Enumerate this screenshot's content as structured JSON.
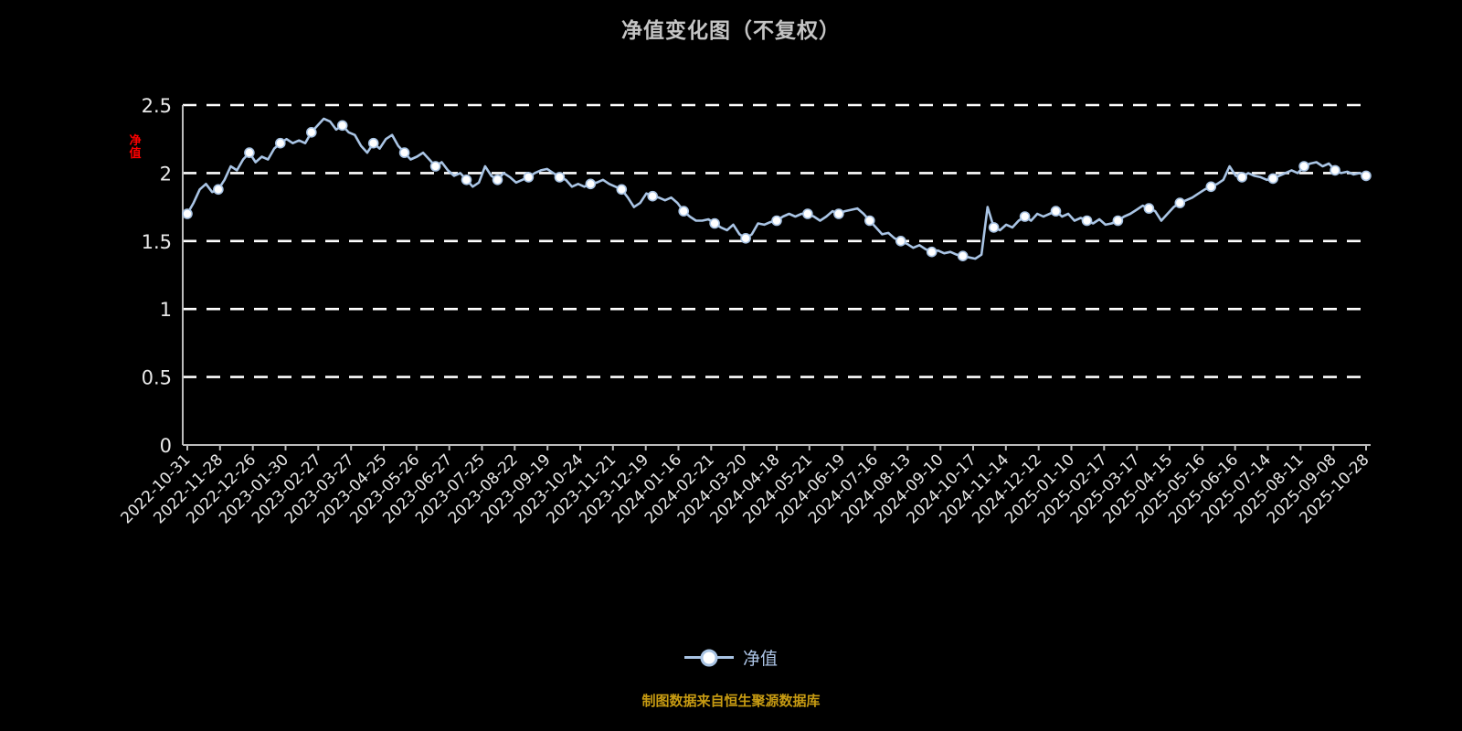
{
  "chart_data": {
    "type": "line",
    "title": "净值变化图（不复权）",
    "y_axis_label": "净值",
    "ylim": [
      0,
      2.5
    ],
    "y_ticks": [
      0,
      0.5,
      1,
      1.5,
      2,
      2.5
    ],
    "y_tick_labels": [
      "0",
      "0.5",
      "1",
      "1.5",
      "2",
      "2.5"
    ],
    "x_tick_labels": [
      "2022-10-31",
      "2022-11-28",
      "2022-12-26",
      "2023-01-30",
      "2023-02-27",
      "2023-03-27",
      "2023-04-25",
      "2023-05-26",
      "2023-06-27",
      "2023-07-25",
      "2023-08-22",
      "2023-09-19",
      "2023-10-24",
      "2023-11-21",
      "2023-12-19",
      "2024-01-16",
      "2024-02-21",
      "2024-03-20",
      "2024-04-18",
      "2024-05-21",
      "2024-06-19",
      "2024-07-16",
      "2024-08-13",
      "2024-09-10",
      "2024-10-17",
      "2024-11-14",
      "2024-12-12",
      "2025-01-10",
      "2025-02-17",
      "2025-03-17",
      "2025-04-15",
      "2025-05-16",
      "2025-06-16",
      "2025-07-14",
      "2025-08-11",
      "2025-09-08",
      "2025-10-28"
    ],
    "series": [
      {
        "name": "净值",
        "values": [
          1.7,
          1.78,
          1.88,
          1.92,
          1.86,
          1.88,
          1.95,
          2.05,
          2.02,
          2.1,
          2.15,
          2.08,
          2.12,
          2.1,
          2.18,
          2.22,
          2.25,
          2.22,
          2.24,
          2.22,
          2.3,
          2.35,
          2.4,
          2.38,
          2.32,
          2.35,
          2.3,
          2.28,
          2.2,
          2.15,
          2.22,
          2.18,
          2.25,
          2.28,
          2.2,
          2.15,
          2.1,
          2.12,
          2.15,
          2.1,
          2.05,
          2.08,
          2.02,
          1.98,
          2.0,
          1.95,
          1.9,
          1.93,
          2.05,
          1.98,
          1.95,
          2.0,
          1.97,
          1.93,
          1.95,
          1.97,
          2.0,
          2.02,
          2.03,
          2.0,
          1.97,
          1.95,
          1.9,
          1.92,
          1.9,
          1.92,
          1.93,
          1.95,
          1.92,
          1.9,
          1.88,
          1.82,
          1.75,
          1.78,
          1.85,
          1.83,
          1.82,
          1.8,
          1.82,
          1.78,
          1.72,
          1.68,
          1.65,
          1.65,
          1.66,
          1.63,
          1.6,
          1.58,
          1.62,
          1.55,
          1.52,
          1.55,
          1.63,
          1.62,
          1.64,
          1.65,
          1.68,
          1.7,
          1.68,
          1.7,
          1.7,
          1.68,
          1.65,
          1.68,
          1.72,
          1.7,
          1.72,
          1.73,
          1.74,
          1.7,
          1.65,
          1.6,
          1.55,
          1.56,
          1.52,
          1.5,
          1.48,
          1.45,
          1.47,
          1.44,
          1.42,
          1.43,
          1.41,
          1.42,
          1.4,
          1.39,
          1.38,
          1.37,
          1.4,
          1.75,
          1.6,
          1.58,
          1.62,
          1.6,
          1.65,
          1.68,
          1.65,
          1.7,
          1.68,
          1.7,
          1.72,
          1.68,
          1.7,
          1.65,
          1.67,
          1.65,
          1.63,
          1.66,
          1.62,
          1.63,
          1.65,
          1.68,
          1.7,
          1.73,
          1.76,
          1.74,
          1.72,
          1.65,
          1.7,
          1.75,
          1.78,
          1.8,
          1.82,
          1.85,
          1.88,
          1.9,
          1.92,
          1.95,
          2.05,
          1.98,
          1.97,
          2.0,
          1.98,
          1.97,
          1.95,
          1.96,
          1.98,
          2.0,
          2.02,
          2.0,
          2.05,
          2.07,
          2.08,
          2.05,
          2.07,
          2.02,
          2.0,
          2.01,
          1.99,
          2.0,
          1.98
        ]
      }
    ],
    "line_color": "#a9c4e4",
    "marker_fill": "#ffffff",
    "marker_stroke": "#a9c4e4",
    "grid_color": "#ffffff",
    "axis_color": "#bdbdbd",
    "background": "#000000",
    "marker_every": 5,
    "legend_position": "bottom"
  },
  "legend": {
    "label": "净值"
  },
  "caption": "制图数据来自恒生聚源数据库",
  "colors": {
    "title": "#c4c4c4",
    "caption": "#c79b12",
    "legend_text": "#aec6e8",
    "y_axis_label_red": "#ff0000",
    "tick_label": "#e8e8e8"
  }
}
